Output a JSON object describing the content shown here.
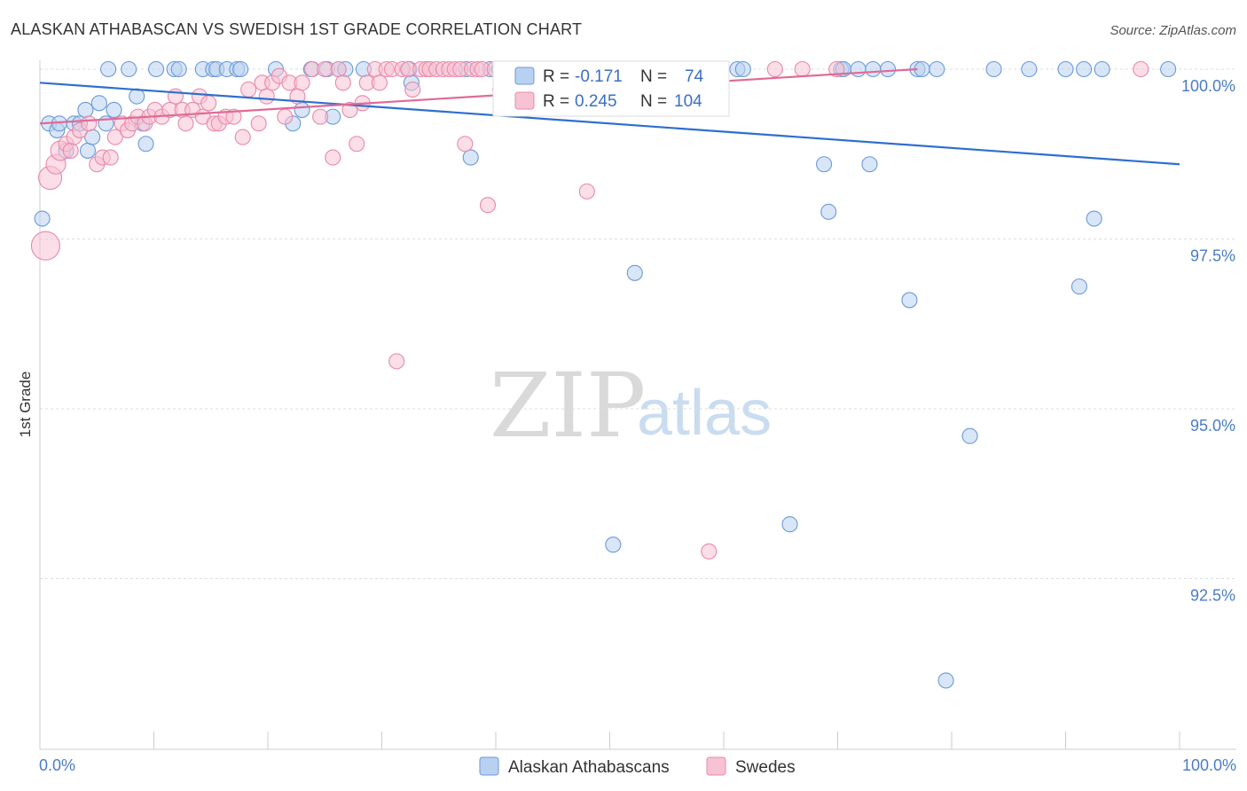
{
  "chart_data": {
    "type": "scatter",
    "title": "ALASKAN ATHABASCAN VS SWEDISH 1ST GRADE CORRELATION CHART",
    "source": "Source: ZipAtlas.com",
    "xlabel": "",
    "ylabel": "1st Grade",
    "xlim": [
      0,
      100
    ],
    "ylim": [
      90.0,
      100.4
    ],
    "y_ticks": [
      100.0,
      97.5,
      95.0,
      92.5
    ],
    "y_tick_labels": [
      "100.0%",
      "97.5%",
      "95.0%",
      "92.5%"
    ],
    "x_tick_labels": [
      "0.0%",
      "100.0%"
    ],
    "grid": true,
    "watermark": {
      "zip": "ZIP",
      "atlas": "atlas"
    },
    "legend_position": "top-center",
    "series": [
      {
        "name": "Alaskan Athabascans",
        "color": "#6a9ad8",
        "fill": "#b9d1f1",
        "R": "-0.171",
        "N": "74",
        "trend": {
          "x": [
            0,
            100
          ],
          "y": [
            99.8,
            98.6
          ]
        },
        "points": [
          [
            0.2,
            97.8
          ],
          [
            0.8,
            99.2
          ],
          [
            1.5,
            99.1
          ],
          [
            1.7,
            99.2
          ],
          [
            2.3,
            98.8
          ],
          [
            3.0,
            99.2
          ],
          [
            3.5,
            99.2
          ],
          [
            4.0,
            99.4
          ],
          [
            4.2,
            98.8
          ],
          [
            4.6,
            99.0
          ],
          [
            5.2,
            99.5
          ],
          [
            5.8,
            99.2
          ],
          [
            6.5,
            99.4
          ],
          [
            8.5,
            99.6
          ],
          [
            9.0,
            99.2
          ],
          [
            9.3,
            98.9
          ],
          [
            6.0,
            100.0
          ],
          [
            7.8,
            100.0
          ],
          [
            10.2,
            100.0
          ],
          [
            11.8,
            100.0
          ],
          [
            12.2,
            100.0
          ],
          [
            14.3,
            100.0
          ],
          [
            15.2,
            100.0
          ],
          [
            15.5,
            100.0
          ],
          [
            16.4,
            100.0
          ],
          [
            17.3,
            100.0
          ],
          [
            17.6,
            100.0
          ],
          [
            20.7,
            100.0
          ],
          [
            22.2,
            99.2
          ],
          [
            23.0,
            99.4
          ],
          [
            23.8,
            100.0
          ],
          [
            25.2,
            100.0
          ],
          [
            25.7,
            99.3
          ],
          [
            26.2,
            100.0
          ],
          [
            26.8,
            100.0
          ],
          [
            28.4,
            100.0
          ],
          [
            32.4,
            100.0
          ],
          [
            32.6,
            99.8
          ],
          [
            37.4,
            100.0
          ],
          [
            37.8,
            98.7
          ],
          [
            39.5,
            100.0
          ],
          [
            40.3,
            100.0
          ],
          [
            42.8,
            100.0
          ],
          [
            46.2,
            100.0
          ],
          [
            50.2,
            100.0
          ],
          [
            52.2,
            97.0
          ],
          [
            50.3,
            93.0
          ],
          [
            55.1,
            100.0
          ],
          [
            58.8,
            100.0
          ],
          [
            61.2,
            100.0
          ],
          [
            61.7,
            100.0
          ],
          [
            65.8,
            93.3
          ],
          [
            68.8,
            98.6
          ],
          [
            69.2,
            97.9
          ],
          [
            70.3,
            100.0
          ],
          [
            70.5,
            100.0
          ],
          [
            71.8,
            100.0
          ],
          [
            72.8,
            98.6
          ],
          [
            73.1,
            100.0
          ],
          [
            74.4,
            100.0
          ],
          [
            76.3,
            96.6
          ],
          [
            77.0,
            100.0
          ],
          [
            77.4,
            100.0
          ],
          [
            78.7,
            100.0
          ],
          [
            79.5,
            91.0
          ],
          [
            81.6,
            94.6
          ],
          [
            83.7,
            100.0
          ],
          [
            86.8,
            100.0
          ],
          [
            90.0,
            100.0
          ],
          [
            91.2,
            96.8
          ],
          [
            91.6,
            100.0
          ],
          [
            92.5,
            97.8
          ],
          [
            93.2,
            100.0
          ],
          [
            99.0,
            100.0
          ]
        ]
      },
      {
        "name": "Swedes",
        "color": "#e889a9",
        "fill": "#f7c3d4",
        "R": "0.245",
        "N": "104",
        "trend": {
          "x": [
            0,
            77
          ],
          "y": [
            99.2,
            100.0
          ]
        },
        "points": [
          [
            0.5,
            97.4
          ],
          [
            0.9,
            98.4
          ],
          [
            1.4,
            98.6
          ],
          [
            1.8,
            98.8
          ],
          [
            2.3,
            98.9
          ],
          [
            2.7,
            98.8
          ],
          [
            3.0,
            99.0
          ],
          [
            3.5,
            99.1
          ],
          [
            4.3,
            99.2
          ],
          [
            5.0,
            98.6
          ],
          [
            5.5,
            98.7
          ],
          [
            6.2,
            98.7
          ],
          [
            6.6,
            99.0
          ],
          [
            7.2,
            99.2
          ],
          [
            7.7,
            99.1
          ],
          [
            8.1,
            99.2
          ],
          [
            8.6,
            99.3
          ],
          [
            9.2,
            99.2
          ],
          [
            9.6,
            99.3
          ],
          [
            10.1,
            99.4
          ],
          [
            10.7,
            99.3
          ],
          [
            11.4,
            99.4
          ],
          [
            11.9,
            99.6
          ],
          [
            12.5,
            99.4
          ],
          [
            12.8,
            99.2
          ],
          [
            13.4,
            99.4
          ],
          [
            14.0,
            99.6
          ],
          [
            14.3,
            99.3
          ],
          [
            14.8,
            99.5
          ],
          [
            15.3,
            99.2
          ],
          [
            15.7,
            99.2
          ],
          [
            16.3,
            99.3
          ],
          [
            17.0,
            99.3
          ],
          [
            17.8,
            99.0
          ],
          [
            18.3,
            99.7
          ],
          [
            19.2,
            99.2
          ],
          [
            19.5,
            99.8
          ],
          [
            19.9,
            99.6
          ],
          [
            20.4,
            99.8
          ],
          [
            21.0,
            99.9
          ],
          [
            21.5,
            99.3
          ],
          [
            21.9,
            99.8
          ],
          [
            22.6,
            99.6
          ],
          [
            23.0,
            99.8
          ],
          [
            23.9,
            100.0
          ],
          [
            24.6,
            99.3
          ],
          [
            25.0,
            100.0
          ],
          [
            25.7,
            98.7
          ],
          [
            26.2,
            100.0
          ],
          [
            26.6,
            99.8
          ],
          [
            27.2,
            99.4
          ],
          [
            27.8,
            98.9
          ],
          [
            28.3,
            99.5
          ],
          [
            28.7,
            99.8
          ],
          [
            29.4,
            100.0
          ],
          [
            29.8,
            99.8
          ],
          [
            30.4,
            100.0
          ],
          [
            30.9,
            100.0
          ],
          [
            31.3,
            95.7
          ],
          [
            31.8,
            100.0
          ],
          [
            32.3,
            100.0
          ],
          [
            32.7,
            99.7
          ],
          [
            33.4,
            100.0
          ],
          [
            33.9,
            100.0
          ],
          [
            34.2,
            100.0
          ],
          [
            34.8,
            100.0
          ],
          [
            35.4,
            100.0
          ],
          [
            35.9,
            100.0
          ],
          [
            36.4,
            100.0
          ],
          [
            36.9,
            100.0
          ],
          [
            37.3,
            98.9
          ],
          [
            37.9,
            100.0
          ],
          [
            38.4,
            100.0
          ],
          [
            38.8,
            100.0
          ],
          [
            39.3,
            98.0
          ],
          [
            39.9,
            100.0
          ],
          [
            40.4,
            99.7
          ],
          [
            41.0,
            100.0
          ],
          [
            41.5,
            100.0
          ],
          [
            42.0,
            100.0
          ],
          [
            42.5,
            100.0
          ],
          [
            43.0,
            100.0
          ],
          [
            43.5,
            100.0
          ],
          [
            44.0,
            100.0
          ],
          [
            44.5,
            100.0
          ],
          [
            45.0,
            100.0
          ],
          [
            45.5,
            100.0
          ],
          [
            46.0,
            100.0
          ],
          [
            46.5,
            100.0
          ],
          [
            47.0,
            100.0
          ],
          [
            47.5,
            100.0
          ],
          [
            48.0,
            98.2
          ],
          [
            48.6,
            100.0
          ],
          [
            49.3,
            100.0
          ],
          [
            50.0,
            100.0
          ],
          [
            50.9,
            100.0
          ],
          [
            52.5,
            100.0
          ],
          [
            54.5,
            100.0
          ],
          [
            58.7,
            92.9
          ],
          [
            59.6,
            100.0
          ],
          [
            64.5,
            100.0
          ],
          [
            66.9,
            100.0
          ],
          [
            69.9,
            100.0
          ],
          [
            96.6,
            100.0
          ]
        ]
      }
    ]
  }
}
